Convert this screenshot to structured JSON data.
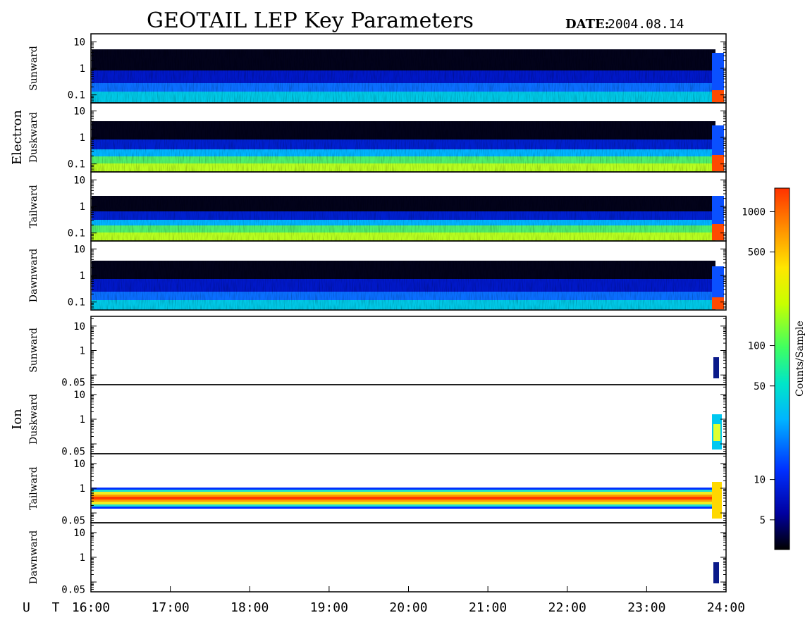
{
  "header": {
    "title": "GEOTAIL LEP Key Parameters",
    "date_label": "DATE:",
    "date_value": "2004.08.14"
  },
  "chart_data": {
    "type": "heatmap",
    "x_axis": {
      "label": "U T",
      "range": [
        "16:00",
        "24:00"
      ],
      "ticks": [
        "16:00",
        "17:00",
        "18:00",
        "19:00",
        "20:00",
        "21:00",
        "22:00",
        "23:00",
        "24:00"
      ],
      "scale": "time"
    },
    "colorbar": {
      "label": "Counts/Sample",
      "scale": "log",
      "range": [
        3,
        1500
      ],
      "ticks": [
        5,
        10,
        50,
        100,
        500,
        1000
      ],
      "tick_labels": [
        "5",
        "10",
        "50",
        "100",
        "500",
        "1000"
      ],
      "colors": [
        "#000000",
        "#0000a0",
        "#0030ff",
        "#00b4ff",
        "#00e6c8",
        "#40ff60",
        "#c8ff00",
        "#ffe600",
        "#ff9600",
        "#ff3200"
      ]
    },
    "groups": [
      {
        "name": "Electron",
        "y_scale": "log",
        "y_range": [
          0.05,
          20
        ],
        "y_ticks": [
          0.1,
          1,
          10
        ],
        "y_tick_labels": [
          "0.1",
          "1",
          "10"
        ],
        "panels": [
          {
            "name": "Sunward",
            "level_counts": 200
          },
          {
            "name": "Duskward",
            "level_counts": 300
          },
          {
            "name": "Tailward",
            "level_counts": 350
          },
          {
            "name": "Dawnward",
            "level_counts": 200
          }
        ]
      },
      {
        "name": "Ion",
        "y_scale": "log",
        "y_range": [
          0.04,
          25
        ],
        "y_ticks": [
          0.05,
          1,
          10
        ],
        "y_tick_labels": [
          "0.05",
          "1",
          "10"
        ],
        "panels": [
          {
            "name": "Sunward",
            "level_counts": 8
          },
          {
            "name": "Duskward",
            "level_counts": 300
          },
          {
            "name": "Tailward",
            "level_counts": 1000
          },
          {
            "name": "Dawnward",
            "level_counts": 8
          }
        ]
      }
    ]
  }
}
